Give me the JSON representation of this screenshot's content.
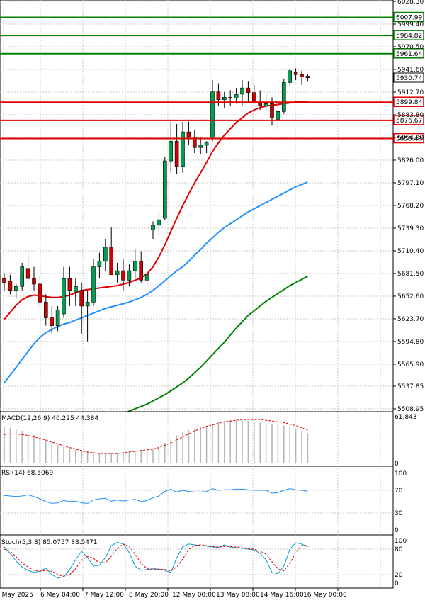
{
  "chart_data": [
    {
      "type": "candlestick",
      "panel": "price",
      "ylim": [
        5508.95,
        6028.3
      ],
      "y_ticks": [
        "6028.30",
        "5999.40",
        "5970.50",
        "5941.60",
        "5912.70",
        "5883.80",
        "5854.90",
        "5826.00",
        "5797.10",
        "5768.20",
        "5739.30",
        "5710.40",
        "5681.50",
        "5652.60",
        "5623.70",
        "5594.80",
        "5565.90",
        "5537.85",
        "5508.95"
      ],
      "x_labels": [
        "5 May 2025",
        "6 May 04:00",
        "7 May 12:00",
        "8 May 20:00",
        "12 May 00:00",
        "13 May 08:00",
        "14 May 16:00",
        "16 May 00:00"
      ],
      "current_price": "5930.74",
      "colors": {
        "up": "#00a050",
        "down": "#d00000",
        "ma_fast": "#e00000",
        "ma_mid": "#1e90ff",
        "ma_slow": "#008000"
      },
      "levels": [
        {
          "value": 6007.99,
          "label": "6007.99",
          "color": "#008000"
        },
        {
          "value": 5984.82,
          "label": "5984.82",
          "color": "#008000"
        },
        {
          "value": 5961.64,
          "label": "5961.64",
          "color": "#008000"
        },
        {
          "value": 5899.84,
          "label": "5899.84",
          "color": "#e00000"
        },
        {
          "value": 5876.67,
          "label": "5876.67",
          "color": "#e00000"
        },
        {
          "value": 5853.49,
          "label": "5853.49",
          "color": "#e00000"
        }
      ],
      "candles": [
        {
          "o": 5675,
          "h": 5682,
          "l": 5660,
          "c": 5670
        },
        {
          "o": 5672,
          "h": 5680,
          "l": 5655,
          "c": 5660
        },
        {
          "o": 5660,
          "h": 5668,
          "l": 5650,
          "c": 5665
        },
        {
          "o": 5665,
          "h": 5695,
          "l": 5660,
          "c": 5690
        },
        {
          "o": 5688,
          "h": 5706,
          "l": 5670,
          "c": 5675
        },
        {
          "o": 5675,
          "h": 5690,
          "l": 5660,
          "c": 5668
        },
        {
          "o": 5668,
          "h": 5678,
          "l": 5640,
          "c": 5645
        },
        {
          "o": 5645,
          "h": 5655,
          "l": 5615,
          "c": 5625
        },
        {
          "o": 5625,
          "h": 5640,
          "l": 5605,
          "c": 5615
        },
        {
          "o": 5615,
          "h": 5640,
          "l": 5608,
          "c": 5635
        },
        {
          "o": 5630,
          "h": 5690,
          "l": 5625,
          "c": 5675
        },
        {
          "o": 5675,
          "h": 5690,
          "l": 5640,
          "c": 5660
        },
        {
          "o": 5658,
          "h": 5675,
          "l": 5640,
          "c": 5665
        },
        {
          "o": 5660,
          "h": 5670,
          "l": 5605,
          "c": 5640
        },
        {
          "o": 5640,
          "h": 5660,
          "l": 5595,
          "c": 5645
        },
        {
          "o": 5645,
          "h": 5700,
          "l": 5640,
          "c": 5690
        },
        {
          "o": 5690,
          "h": 5708,
          "l": 5675,
          "c": 5697
        },
        {
          "o": 5697,
          "h": 5725,
          "l": 5685,
          "c": 5715
        },
        {
          "o": 5715,
          "h": 5740,
          "l": 5680,
          "c": 5680
        },
        {
          "o": 5680,
          "h": 5695,
          "l": 5670,
          "c": 5685
        },
        {
          "o": 5685,
          "h": 5700,
          "l": 5660,
          "c": 5673
        },
        {
          "o": 5673,
          "h": 5693,
          "l": 5665,
          "c": 5685
        },
        {
          "o": 5685,
          "h": 5712,
          "l": 5675,
          "c": 5697
        },
        {
          "o": 5697,
          "h": 5710,
          "l": 5670,
          "c": 5673
        },
        {
          "o": 5673,
          "h": 5685,
          "l": 5665,
          "c": 5680
        },
        {
          "o": 5737,
          "h": 5748,
          "l": 5725,
          "c": 5743
        },
        {
          "o": 5743,
          "h": 5760,
          "l": 5730,
          "c": 5750
        },
        {
          "o": 5752,
          "h": 5830,
          "l": 5750,
          "c": 5825
        },
        {
          "o": 5825,
          "h": 5875,
          "l": 5810,
          "c": 5850
        },
        {
          "o": 5850,
          "h": 5872,
          "l": 5808,
          "c": 5818
        },
        {
          "o": 5818,
          "h": 5875,
          "l": 5810,
          "c": 5862
        },
        {
          "o": 5862,
          "h": 5875,
          "l": 5845,
          "c": 5855
        },
        {
          "o": 5855,
          "h": 5865,
          "l": 5835,
          "c": 5842
        },
        {
          "o": 5842,
          "h": 5855,
          "l": 5833,
          "c": 5845
        },
        {
          "o": 5845,
          "h": 5850,
          "l": 5835,
          "c": 5848
        },
        {
          "o": 5855,
          "h": 5928,
          "l": 5850,
          "c": 5913
        },
        {
          "o": 5913,
          "h": 5924,
          "l": 5895,
          "c": 5903
        },
        {
          "o": 5903,
          "h": 5913,
          "l": 5892,
          "c": 5906
        },
        {
          "o": 5906,
          "h": 5915,
          "l": 5895,
          "c": 5905
        },
        {
          "o": 5905,
          "h": 5918,
          "l": 5898,
          "c": 5910
        },
        {
          "o": 5910,
          "h": 5928,
          "l": 5896,
          "c": 5918
        },
        {
          "o": 5918,
          "h": 5926,
          "l": 5900,
          "c": 5912
        },
        {
          "o": 5912,
          "h": 5922,
          "l": 5898,
          "c": 5900
        },
        {
          "o": 5900,
          "h": 5915,
          "l": 5890,
          "c": 5895
        },
        {
          "o": 5895,
          "h": 5910,
          "l": 5888,
          "c": 5898
        },
        {
          "o": 5898,
          "h": 5906,
          "l": 5870,
          "c": 5880
        },
        {
          "o": 5878,
          "h": 5896,
          "l": 5865,
          "c": 5888
        },
        {
          "o": 5888,
          "h": 5930,
          "l": 5885,
          "c": 5925
        },
        {
          "o": 5925,
          "h": 5942,
          "l": 5920,
          "c": 5940
        },
        {
          "o": 5938,
          "h": 5943,
          "l": 5928,
          "c": 5935
        },
        {
          "o": 5935,
          "h": 5940,
          "l": 5922,
          "c": 5932
        },
        {
          "o": 5933,
          "h": 5936,
          "l": 5926,
          "c": 5931
        }
      ],
      "ma_fast": [
        5623,
        5632,
        5641,
        5648,
        5652,
        5654,
        5653,
        5652,
        5651,
        5651,
        5652,
        5654,
        5657,
        5660,
        5661,
        5662,
        5663,
        5664,
        5665,
        5666,
        5668,
        5670,
        5673,
        5676,
        5681,
        5690,
        5703,
        5718,
        5735,
        5752,
        5768,
        5783,
        5797,
        5810,
        5823,
        5837,
        5848,
        5858,
        5866,
        5874,
        5880,
        5886,
        5890,
        5893,
        5895,
        5896,
        5897,
        5898,
        5899,
        5900,
        5900,
        5900
      ],
      "ma_mid": [
        5542,
        5552,
        5562,
        5572,
        5582,
        5592,
        5600,
        5606,
        5610,
        5614,
        5617,
        5619,
        5622,
        5625,
        5628,
        5631,
        5634,
        5637,
        5639,
        5641,
        5643,
        5645,
        5648,
        5651,
        5655,
        5660,
        5666,
        5672,
        5679,
        5685,
        5690,
        5697,
        5705,
        5712,
        5720,
        5727,
        5734,
        5740,
        5745,
        5750,
        5755,
        5760,
        5764,
        5768,
        5772,
        5776,
        5780,
        5784,
        5788,
        5792,
        5795,
        5798
      ],
      "ma_slow": [
        5410,
        5416,
        5422,
        5428,
        5434,
        5440,
        5446,
        5451,
        5456,
        5461,
        5466,
        5470,
        5474,
        5478,
        5482,
        5486,
        5490,
        5493,
        5497,
        5500,
        5503,
        5506,
        5509,
        5512,
        5515,
        5519,
        5523,
        5527,
        5532,
        5537,
        5542,
        5548,
        5555,
        5562,
        5570,
        5578,
        5586,
        5594,
        5603,
        5612,
        5620,
        5628,
        5634,
        5640,
        5646,
        5651,
        5656,
        5661,
        5666,
        5670,
        5674,
        5678
      ]
    },
    {
      "type": "bar",
      "panel": "macd",
      "label": "MACD(12,26,9) 40.225 44.384",
      "ylim": [
        0,
        61.843
      ],
      "y_ticks": [
        "61.843",
        "0"
      ],
      "histogram": [
        48,
        47,
        45,
        43,
        40,
        37,
        34,
        31,
        28,
        25,
        22,
        20,
        18,
        17,
        16,
        15,
        14,
        14,
        14,
        14,
        15,
        16,
        17,
        18,
        19,
        20,
        23,
        27,
        32,
        37,
        41,
        44,
        46,
        48,
        50,
        52,
        55,
        56,
        57,
        57,
        57,
        56,
        55,
        54,
        53,
        52,
        51,
        50,
        48,
        46,
        43,
        40
      ],
      "signal": [
        38,
        39,
        39,
        38,
        37,
        35,
        33,
        31,
        28,
        26,
        23,
        21,
        19,
        17,
        15,
        14,
        13,
        13,
        13,
        13,
        14,
        15,
        16,
        17,
        18,
        19,
        21,
        24,
        27,
        31,
        35,
        39,
        43,
        46,
        49,
        51,
        53,
        55,
        56,
        57,
        58,
        58,
        58,
        58,
        57,
        56,
        55,
        54,
        52,
        50,
        47,
        44
      ]
    },
    {
      "type": "line",
      "panel": "rsi",
      "label": "RSI(14) 68.5069",
      "ylim": [
        0,
        100
      ],
      "y_ticks": [
        "100",
        "70",
        "30",
        "0"
      ],
      "values": [
        61,
        60,
        59,
        60,
        62,
        59,
        55,
        50,
        47,
        48,
        52,
        50,
        51,
        48,
        47,
        53,
        55,
        56,
        51,
        53,
        51,
        53,
        54,
        50,
        52,
        57,
        60,
        68,
        72,
        67,
        70,
        68,
        67,
        67,
        68,
        73,
        70,
        71,
        71,
        72,
        72,
        71,
        70,
        70,
        70,
        65,
        66,
        70,
        73,
        71,
        70,
        68.5
      ]
    },
    {
      "type": "line",
      "panel": "stoch",
      "label": "Stoch(5,3,3) 85.0757 88.5471",
      "ylim": [
        0,
        100
      ],
      "y_ticks": [
        "100",
        "80",
        "20",
        "0"
      ],
      "main": [
        85,
        70,
        52,
        38,
        30,
        25,
        28,
        35,
        20,
        12,
        15,
        32,
        55,
        75,
        60,
        40,
        42,
        60,
        88,
        96,
        92,
        72,
        40,
        30,
        32,
        34,
        33,
        30,
        25,
        60,
        85,
        92,
        90,
        88,
        87,
        85,
        84,
        90,
        85,
        83,
        82,
        80,
        78,
        70,
        55,
        25,
        22,
        40,
        80,
        95,
        92,
        85
      ],
      "signal": [
        80,
        75,
        62,
        48,
        38,
        30,
        28,
        30,
        28,
        20,
        16,
        20,
        34,
        54,
        63,
        58,
        48,
        48,
        63,
        82,
        92,
        86,
        68,
        47,
        34,
        32,
        33,
        32,
        29,
        38,
        57,
        79,
        89,
        90,
        88,
        86,
        85,
        86,
        86,
        85,
        83,
        81,
        80,
        76,
        68,
        50,
        34,
        29,
        47,
        72,
        89,
        88.5
      ]
    }
  ]
}
